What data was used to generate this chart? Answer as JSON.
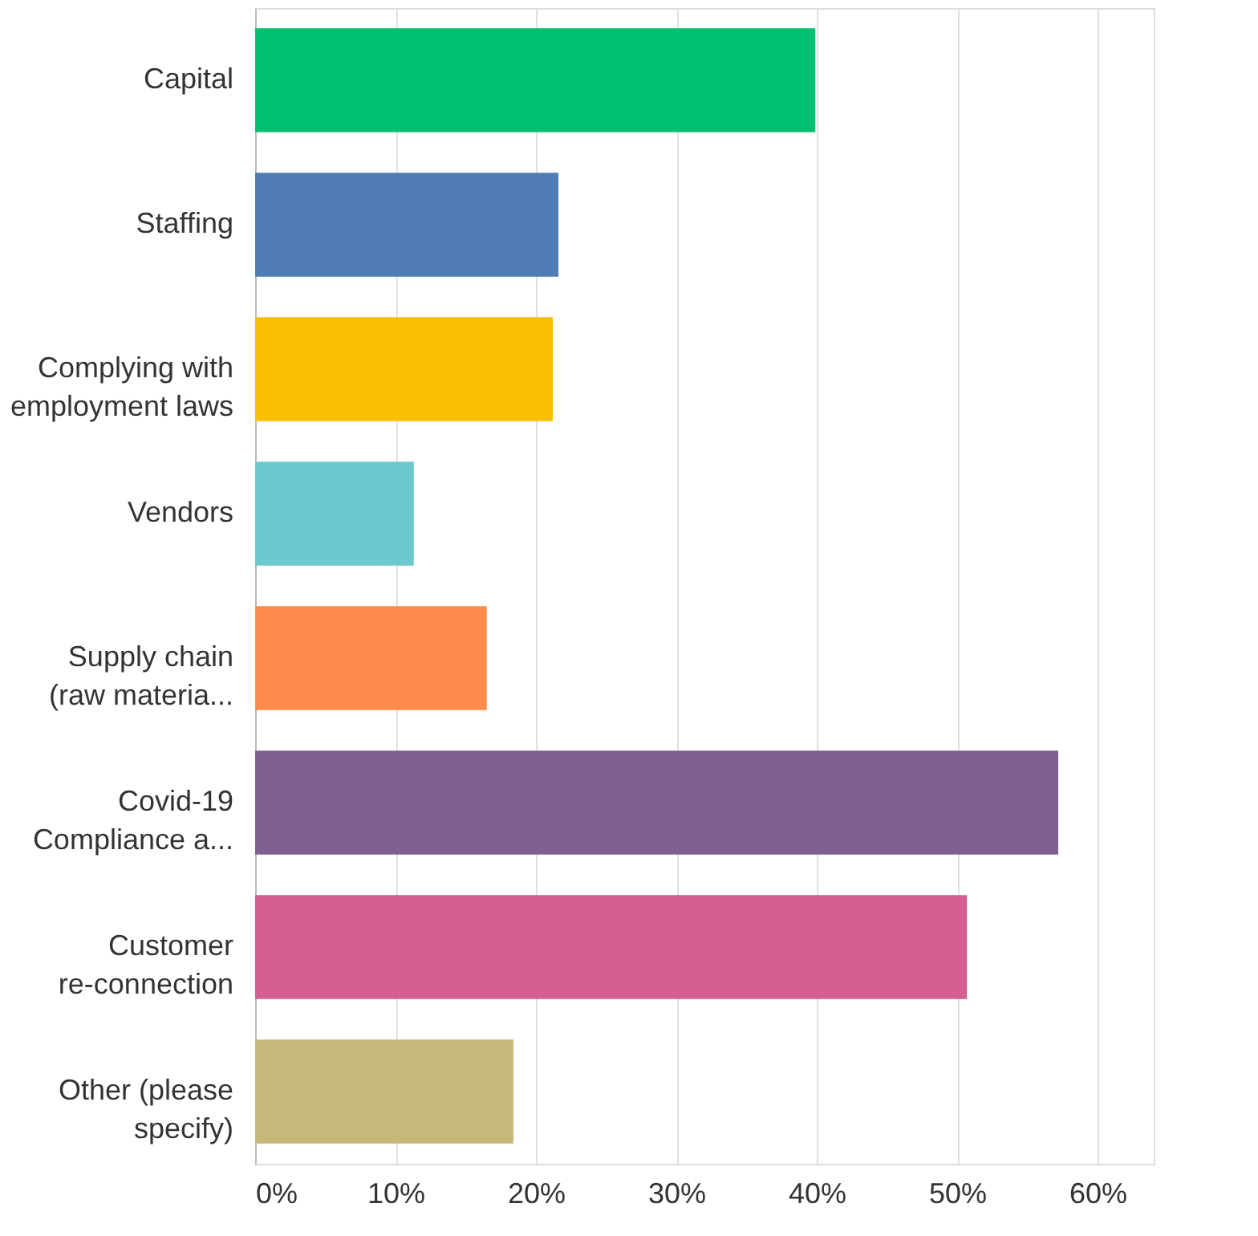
{
  "chart_data": {
    "type": "bar",
    "orientation": "horizontal",
    "categories": [
      "Capital",
      "Staffing",
      "Complying with\nemployment laws",
      "Vendors",
      "Supply chain\n(raw materia...",
      "Covid-19\nCompliance a...",
      "Customer\nre-connection",
      "Other (please\nspecify)"
    ],
    "values": [
      39.9,
      21.6,
      21.2,
      11.3,
      16.5,
      57.2,
      50.7,
      18.4
    ],
    "colors": [
      "#00bf6f",
      "#507cb6",
      "#f9be00",
      "#6bc8cd",
      "#ff8b4f",
      "#7f5e90",
      "#d25f90",
      "#c7b879"
    ],
    "xlim": [
      0,
      64
    ],
    "xticks": [
      {
        "value": 0,
        "label": "0%"
      },
      {
        "value": 10,
        "label": "10%"
      },
      {
        "value": 20,
        "label": "20%"
      },
      {
        "value": 30,
        "label": "30%"
      },
      {
        "value": 40,
        "label": "40%"
      },
      {
        "value": 50,
        "label": "50%"
      },
      {
        "value": 60,
        "label": "60%"
      }
    ],
    "grid": "x"
  }
}
